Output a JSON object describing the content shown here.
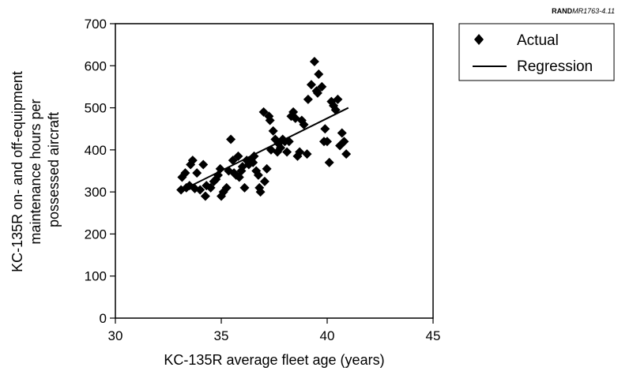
{
  "figure_id": {
    "prefix": "RAND",
    "code": "MR1763-4.11"
  },
  "chart_data": {
    "type": "scatter",
    "title": "",
    "xlabel": "KC-135R average fleet age (years)",
    "ylabel_lines": [
      "KC-135R on- and off-equipment",
      "maintenance hours per",
      "possessed aircraft"
    ],
    "xlim": [
      30,
      45
    ],
    "ylim": [
      0,
      700
    ],
    "x_ticks": [
      30,
      35,
      40,
      45
    ],
    "y_ticks": [
      0,
      100,
      200,
      300,
      400,
      500,
      600,
      700
    ],
    "grid": false,
    "legend_position": "top-right, outside plot",
    "series": [
      {
        "name": "Actual",
        "marker": "diamond",
        "color": "#000000",
        "points": [
          [
            33.1,
            305
          ],
          [
            33.15,
            335
          ],
          [
            33.3,
            345
          ],
          [
            33.35,
            310
          ],
          [
            33.5,
            315
          ],
          [
            33.55,
            365
          ],
          [
            33.65,
            375
          ],
          [
            33.75,
            308
          ],
          [
            33.85,
            345
          ],
          [
            34.0,
            305
          ],
          [
            34.15,
            365
          ],
          [
            34.25,
            290
          ],
          [
            34.3,
            315
          ],
          [
            34.5,
            310
          ],
          [
            34.65,
            325
          ],
          [
            34.75,
            330
          ],
          [
            34.85,
            340
          ],
          [
            34.95,
            355
          ],
          [
            35.0,
            290
          ],
          [
            35.1,
            300
          ],
          [
            35.25,
            310
          ],
          [
            35.35,
            350
          ],
          [
            35.45,
            425
          ],
          [
            35.55,
            375
          ],
          [
            35.6,
            345
          ],
          [
            35.7,
            340
          ],
          [
            35.8,
            385
          ],
          [
            35.85,
            335
          ],
          [
            35.95,
            350
          ],
          [
            36.0,
            360
          ],
          [
            36.1,
            310
          ],
          [
            36.2,
            375
          ],
          [
            36.3,
            365
          ],
          [
            36.4,
            375
          ],
          [
            36.5,
            370
          ],
          [
            36.55,
            385
          ],
          [
            36.65,
            350
          ],
          [
            36.75,
            340
          ],
          [
            36.8,
            310
          ],
          [
            36.85,
            300
          ],
          [
            37.0,
            490
          ],
          [
            37.05,
            325
          ],
          [
            37.15,
            355
          ],
          [
            37.25,
            480
          ],
          [
            37.3,
            470
          ],
          [
            37.35,
            400
          ],
          [
            37.45,
            445
          ],
          [
            37.55,
            425
          ],
          [
            37.65,
            395
          ],
          [
            37.7,
            415
          ],
          [
            37.8,
            405
          ],
          [
            37.9,
            425
          ],
          [
            38.0,
            420
          ],
          [
            38.1,
            395
          ],
          [
            38.2,
            420
          ],
          [
            38.3,
            480
          ],
          [
            38.4,
            490
          ],
          [
            38.5,
            475
          ],
          [
            38.6,
            385
          ],
          [
            38.7,
            395
          ],
          [
            38.8,
            470
          ],
          [
            38.9,
            460
          ],
          [
            39.05,
            390
          ],
          [
            39.1,
            520
          ],
          [
            39.25,
            555
          ],
          [
            39.4,
            610
          ],
          [
            39.5,
            540
          ],
          [
            39.55,
            535
          ],
          [
            39.6,
            580
          ],
          [
            39.75,
            550
          ],
          [
            39.85,
            420
          ],
          [
            39.9,
            450
          ],
          [
            40.0,
            420
          ],
          [
            40.1,
            370
          ],
          [
            40.2,
            515
          ],
          [
            40.3,
            505
          ],
          [
            40.4,
            495
          ],
          [
            40.5,
            520
          ],
          [
            40.6,
            410
          ],
          [
            40.7,
            440
          ],
          [
            40.8,
            420
          ],
          [
            40.9,
            390
          ]
        ]
      },
      {
        "name": "Regression",
        "style": "line",
        "color": "#000000",
        "points": [
          [
            33.1,
            303
          ],
          [
            41.0,
            500
          ]
        ]
      }
    ]
  }
}
